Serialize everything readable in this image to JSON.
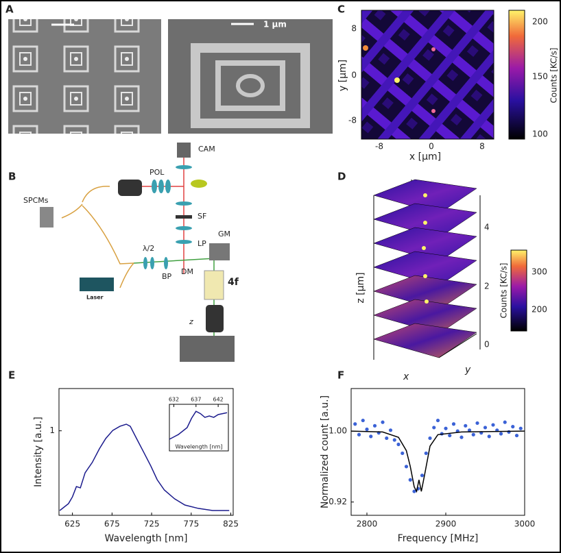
{
  "panels": {
    "A": {
      "label": "A",
      "scale_bar": "1 μm"
    },
    "B": {
      "label": "B",
      "components": [
        "CAM",
        "POL",
        "SPCMs",
        "SF",
        "LP",
        "GM",
        "λ/2",
        "BP",
        "DM",
        "4f",
        "Laser",
        "z"
      ]
    },
    "C": {
      "label": "C",
      "x_label": "x [μm]",
      "y_label": "y [μm]",
      "x_ticks": [
        "-8",
        "0",
        "8"
      ],
      "y_ticks": [
        "8",
        "0",
        "-8"
      ],
      "colorbar_label": "Counts [KC/s]",
      "colorbar_ticks": [
        "200",
        "150",
        "100"
      ]
    },
    "D": {
      "label": "D",
      "z_label": "z [μm]",
      "z_ticks": [
        "4",
        "2",
        "0"
      ],
      "x_label": "x",
      "y_label": "y",
      "colorbar_label": "Counts [KC/s]",
      "colorbar_ticks": [
        "300",
        "200"
      ]
    },
    "E": {
      "label": "E"
    },
    "F": {
      "label": "F"
    }
  },
  "chart_data": [
    {
      "type": "line",
      "x_label": "Wavelength [nm]",
      "y_label": "Intensity [a.u.]",
      "xlim": [
        608,
        828
      ],
      "ylim": [
        0.4,
        1.3
      ],
      "xticks": [
        625,
        675,
        725,
        775,
        825
      ],
      "yticks": [
        1
      ],
      "series": [
        {
          "color": "#1a1a8c",
          "x": [
            609,
            620,
            625,
            630,
            635,
            641,
            650,
            659,
            667,
            676,
            685,
            693,
            698,
            706,
            715,
            724,
            732,
            741,
            754,
            767,
            784,
            802,
            823
          ],
          "values": [
            0.434,
            0.483,
            0.531,
            0.604,
            0.595,
            0.702,
            0.775,
            0.872,
            0.945,
            1.003,
            1.032,
            1.047,
            1.032,
            0.945,
            0.848,
            0.75,
            0.653,
            0.58,
            0.517,
            0.473,
            0.449,
            0.434,
            0.434
          ]
        }
      ]
    },
    {
      "type": "line",
      "x_label": "Wavelength [nm]",
      "xlim": [
        631,
        644.3
      ],
      "ylim": [
        0,
        1
      ],
      "xticks": [
        632,
        637,
        642
      ],
      "series": [
        {
          "color": "#1a1a8c",
          "x": [
            631,
            633,
            635,
            636,
            637,
            638,
            639,
            640,
            641,
            642,
            643,
            644
          ],
          "values": [
            0.25,
            0.35,
            0.5,
            0.7,
            0.85,
            0.8,
            0.72,
            0.75,
            0.72,
            0.78,
            0.8,
            0.82
          ]
        }
      ]
    },
    {
      "type": "scatter",
      "x_label": "Frequency [MHz]",
      "y_label": "Normalized count [a.u.]",
      "xlim": [
        2780,
        3000
      ],
      "ylim": [
        0.905,
        1.048
      ],
      "xticks": [
        2800,
        2900,
        3000
      ],
      "yticks": [
        {
          "value": 1.0,
          "label": "1.00"
        },
        {
          "value": 0.92,
          "label": "0.92"
        }
      ],
      "series": [
        {
          "color": "#3b62d6",
          "x": [
            2785,
            2790,
            2795,
            2800,
            2805,
            2810,
            2815,
            2820,
            2825,
            2830,
            2835,
            2840,
            2845,
            2850,
            2855,
            2860,
            2865,
            2870,
            2875,
            2880,
            2885,
            2890,
            2895,
            2900,
            2905,
            2910,
            2915,
            2920,
            2925,
            2930,
            2935,
            2940,
            2945,
            2950,
            2955,
            2960,
            2965,
            2970,
            2975,
            2980,
            2985,
            2990,
            2995
          ],
          "values": [
            1.008,
            0.996,
            1.012,
            1.002,
            0.994,
            1.006,
            0.998,
            1.01,
            0.992,
            1.001,
            0.99,
            0.985,
            0.975,
            0.96,
            0.945,
            0.932,
            0.935,
            0.95,
            0.975,
            0.992,
            1.004,
            1.012,
            0.997,
            1.003,
            0.995,
            1.008,
            1.0,
            0.993,
            1.006,
            1.001,
            0.996,
            1.009,
            0.998,
            1.004,
            0.994,
            1.007,
            1.001,
            0.997,
            1.01,
            0.999,
            1.005,
            0.995,
            1.003
          ]
        },
        {
          "type": "line",
          "color": "#000000",
          "x": [
            2780,
            2820,
            2840,
            2850,
            2855,
            2860,
            2863,
            2866,
            2869,
            2873,
            2880,
            2890,
            2920,
            3000
          ],
          "values": [
            1.0,
            0.999,
            0.993,
            0.978,
            0.96,
            0.937,
            0.932,
            0.945,
            0.932,
            0.95,
            0.983,
            0.996,
            0.999,
            1.0
          ]
        }
      ]
    }
  ]
}
